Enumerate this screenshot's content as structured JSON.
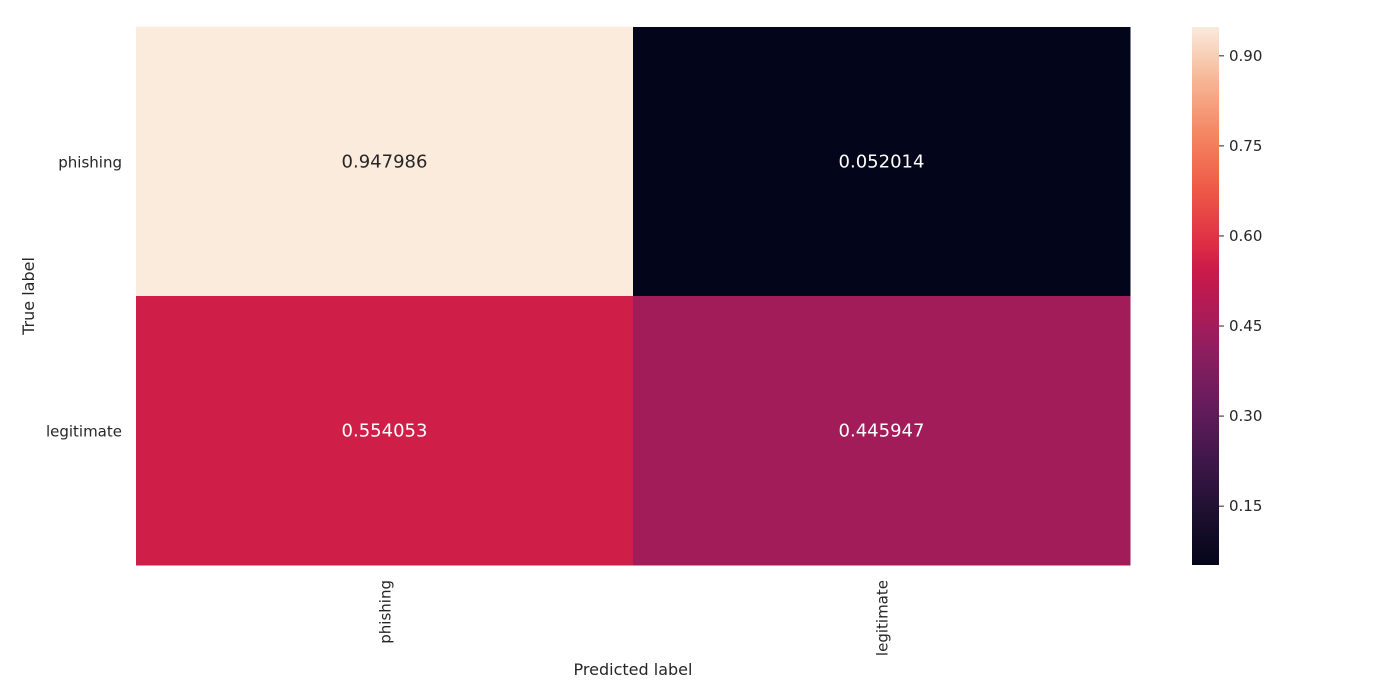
{
  "chart_data": {
    "type": "heatmap",
    "x_categories": [
      "phishing",
      "legitimate"
    ],
    "y_categories": [
      "phishing",
      "legitimate"
    ],
    "values": [
      [
        0.947986,
        0.052014
      ],
      [
        0.554053,
        0.445947
      ]
    ],
    "cell_labels": [
      [
        "0.947986",
        "0.052014"
      ],
      [
        "0.554053",
        "0.445947"
      ]
    ],
    "xlabel": "Predicted label",
    "ylabel": "True label",
    "colorbar": {
      "vmin": 0.052014,
      "vmax": 0.947986,
      "ticks": [
        0.15,
        0.3,
        0.45,
        0.6,
        0.75,
        0.9
      ],
      "tick_labels": [
        "0.15",
        "0.30",
        "0.45",
        "0.60",
        "0.75",
        "0.90"
      ],
      "colormap": "rocket"
    }
  }
}
